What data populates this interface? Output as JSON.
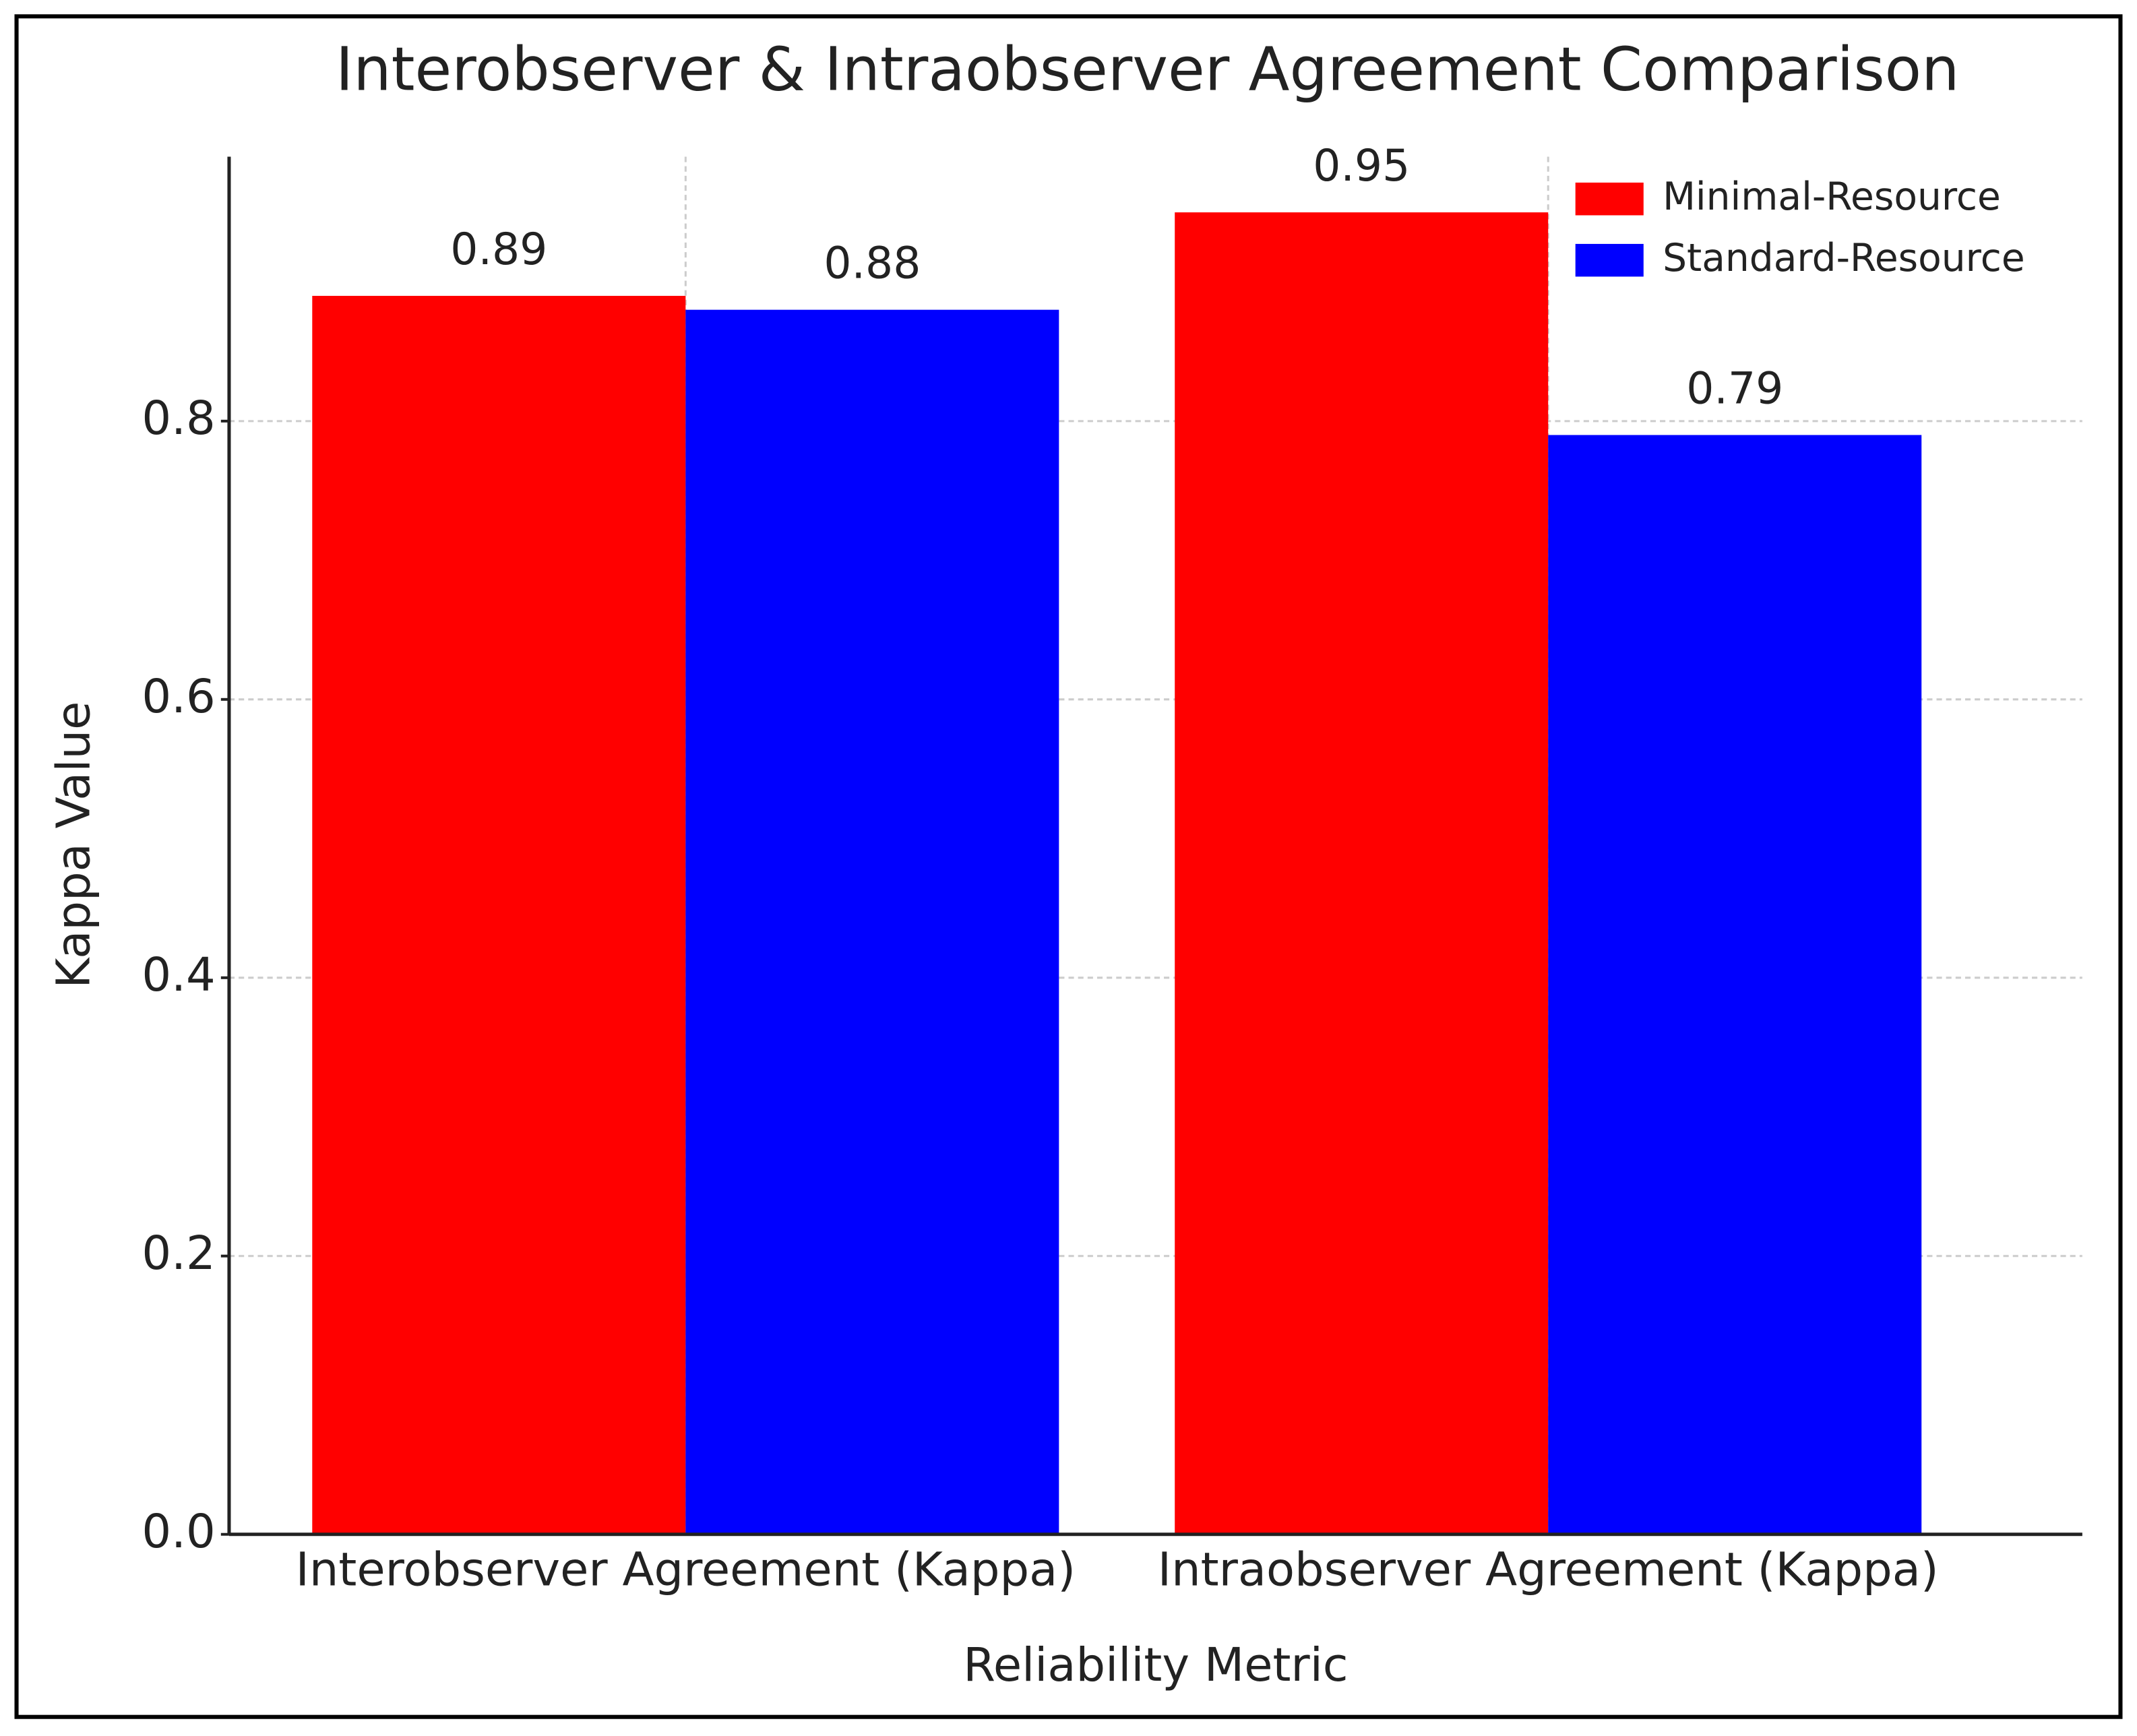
{
  "chart_data": {
    "type": "bar",
    "title": "Interobserver & Intraobserver Agreement Comparison",
    "x_label": "Reliability Metric",
    "y_label": "Kappa Value",
    "categories": [
      "Interobserver Agreement (Kappa)",
      "Intraobserver Agreement (Kappa)"
    ],
    "series": [
      {
        "name": "Minimal-Resource",
        "color": "#ff0000",
        "values": [
          0.89,
          0.95
        ]
      },
      {
        "name": "Standard-Resource",
        "color": "#0000ff",
        "values": [
          0.88,
          0.79
        ]
      }
    ],
    "ylim": [
      0,
      0.99
    ],
    "yticks": [
      {
        "value": 0,
        "label": "0.0"
      },
      0.2,
      0.4,
      0.6,
      0.8
    ],
    "grid": true,
    "legend": "upper right"
  }
}
